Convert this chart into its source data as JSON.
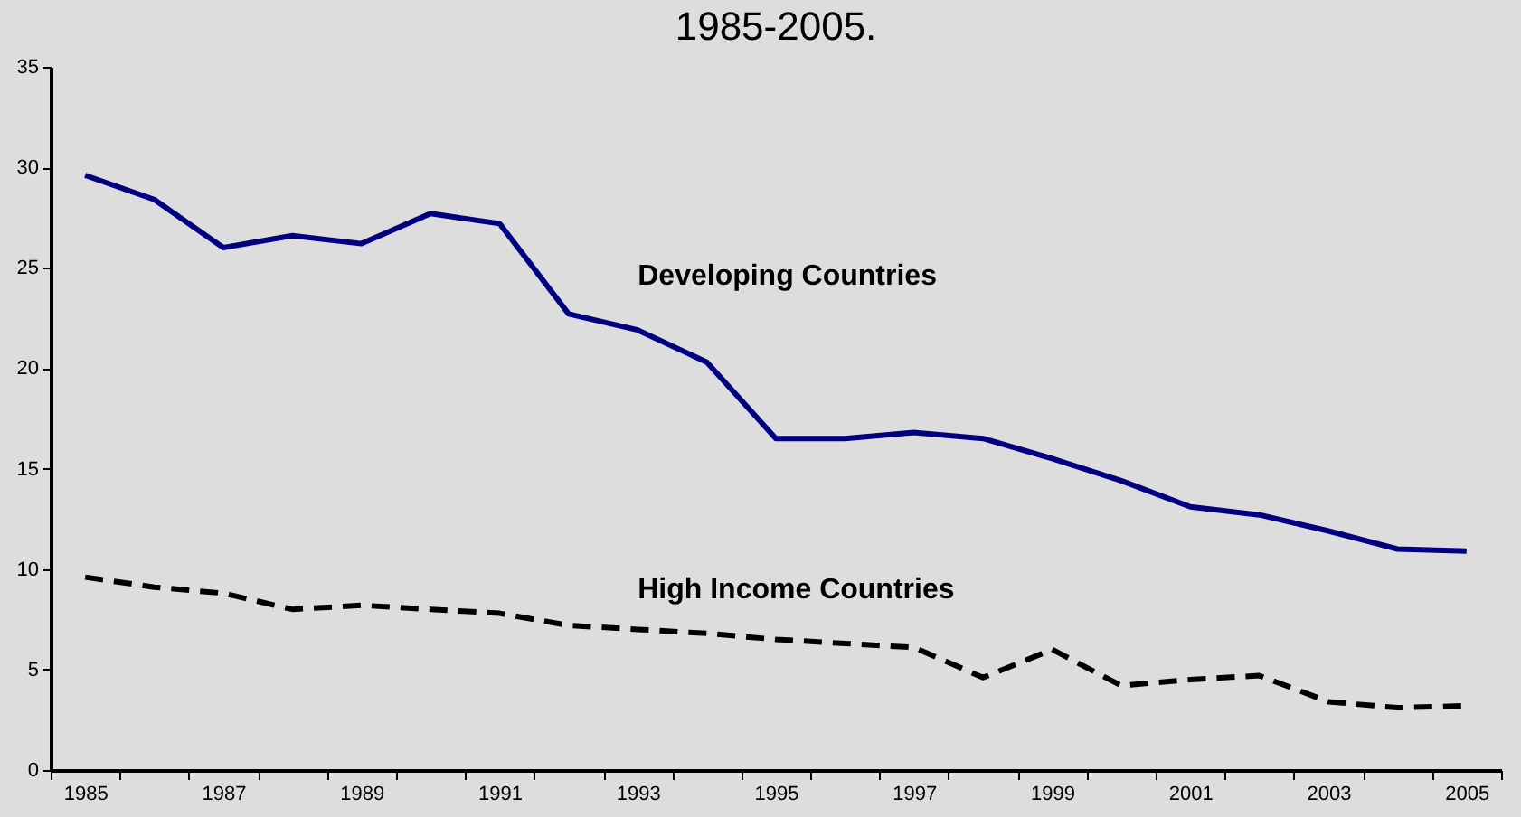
{
  "chart_data": {
    "type": "line",
    "title": "1985-2005.",
    "categories": [
      "1985",
      null,
      "1987",
      null,
      "1989",
      null,
      "1991",
      null,
      "1993",
      null,
      "1995",
      null,
      "1997",
      null,
      "1999",
      null,
      "2001",
      null,
      "2003",
      null,
      "2005"
    ],
    "series": [
      {
        "name": "Developing Countries",
        "color": "#000080",
        "line_style": "solid",
        "values": [
          29.6,
          28.4,
          26.0,
          26.6,
          26.2,
          27.7,
          27.2,
          22.7,
          21.9,
          20.3,
          16.5,
          16.5,
          16.8,
          16.5,
          15.5,
          14.4,
          13.1,
          12.7,
          11.9,
          11.0,
          10.9
        ]
      },
      {
        "name": "High Income Countries",
        "color": "#000000",
        "line_style": "dashed",
        "values": [
          9.6,
          9.1,
          8.8,
          8.0,
          8.2,
          8.0,
          7.8,
          7.2,
          7.0,
          6.8,
          6.5,
          6.3,
          6.1,
          4.6,
          6.0,
          4.2,
          4.5,
          4.7,
          3.4,
          3.1,
          3.2
        ]
      }
    ],
    "ylim": [
      0,
      35
    ],
    "yticks": [
      0,
      5,
      10,
      15,
      20,
      25,
      30,
      35
    ]
  }
}
